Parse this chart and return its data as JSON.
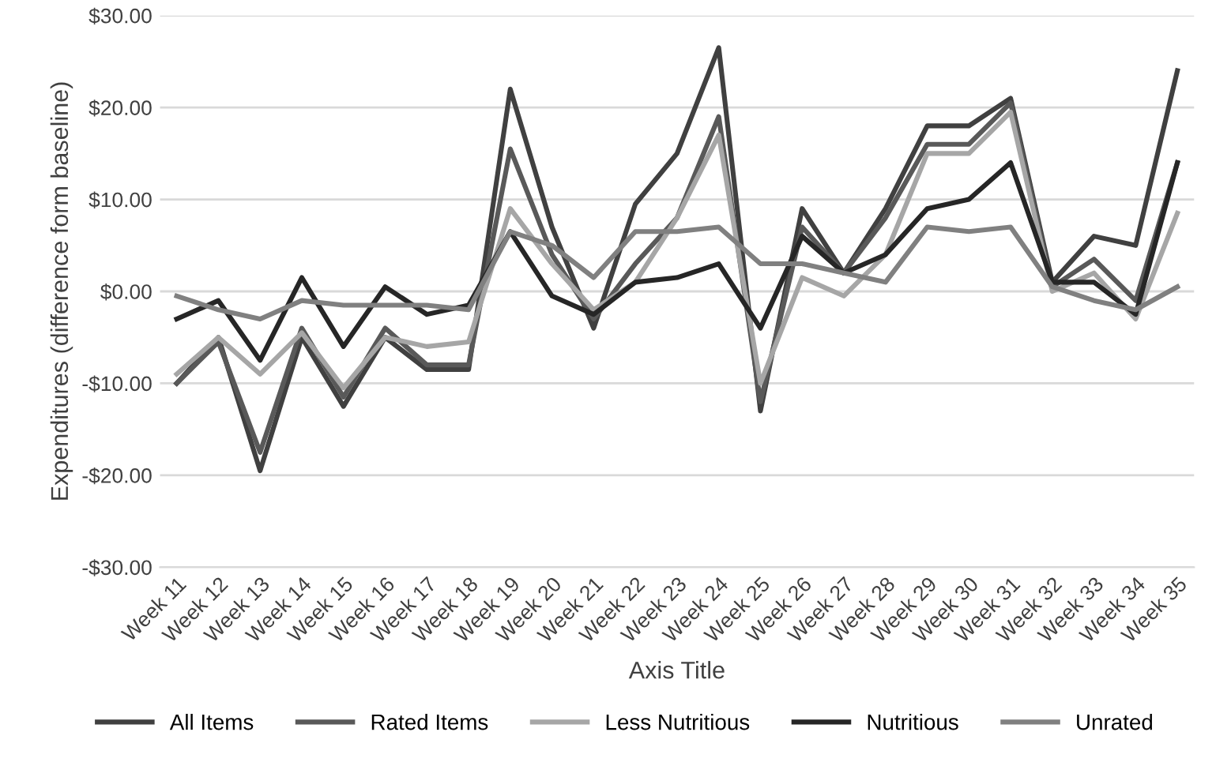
{
  "chart_data": {
    "type": "line",
    "xlabel": "Axis Title",
    "ylabel": "Expenditures (difference form baseline)",
    "categories": [
      "Week 11",
      "Week 12",
      "Week 13",
      "Week 14",
      "Week 15",
      "Week 16",
      "Week 17",
      "Week 18",
      "Week 19",
      "Week 20",
      "Week 21",
      "Week 22",
      "Week 23",
      "Week 24",
      "Week 25",
      "Week 26",
      "Week 27",
      "Week 28",
      "Week 29",
      "Week 30",
      "Week 31",
      "Week 32",
      "Week 33",
      "Week 34",
      "Week 35"
    ],
    "series": [
      {
        "name": "All Items",
        "color": "#404040",
        "values": [
          -10,
          -5,
          -19.5,
          -5,
          -12.5,
          -5,
          -8.5,
          -8.5,
          22,
          7,
          -4,
          9.5,
          15,
          26.5,
          -13,
          9,
          2,
          9,
          18,
          18,
          21,
          1,
          6,
          5,
          24
        ]
      },
      {
        "name": "Rated Items",
        "color": "#595959",
        "values": [
          -10,
          -5.5,
          -17.5,
          -4,
          -11.5,
          -4,
          -8,
          -8,
          15.5,
          4,
          -3,
          3,
          8,
          19,
          -12,
          7,
          2,
          8,
          16,
          16,
          20.5,
          0.5,
          3.5,
          -1,
          14
        ]
      },
      {
        "name": "Less Nutritious",
        "color": "#a6a6a6",
        "values": [
          -9,
          -5,
          -9,
          -4.5,
          -10.5,
          -5,
          -6,
          -5.5,
          9,
          3,
          -2,
          1,
          8,
          17,
          -10,
          1.5,
          -0.5,
          4,
          15,
          15,
          19.5,
          0,
          2,
          -3,
          8.5
        ]
      },
      {
        "name": "Nutritious",
        "color": "#262626",
        "values": [
          -3,
          -1,
          -7.5,
          1.5,
          -6,
          0.5,
          -2.5,
          -1.5,
          6.5,
          -0.5,
          -2.5,
          1,
          1.5,
          3,
          -4,
          6,
          2,
          4,
          9,
          10,
          14,
          1,
          1,
          -2.5,
          14
        ]
      },
      {
        "name": "Unrated",
        "color": "#808080",
        "values": [
          -0.5,
          -2,
          -3,
          -1,
          -1.5,
          -1.5,
          -1.5,
          -2,
          6.5,
          5,
          1.5,
          6.5,
          6.5,
          7,
          3,
          3,
          2,
          1,
          7,
          6.5,
          7,
          0.5,
          -1,
          -2,
          0.5
        ]
      }
    ],
    "ylim": [
      -30,
      30
    ],
    "yticks": [
      {
        "value": -30,
        "label": "-$30.00"
      },
      {
        "value": -20,
        "label": "-$20.00"
      },
      {
        "value": -10,
        "label": "-$10.00"
      },
      {
        "value": 0,
        "label": "$0.00"
      },
      {
        "value": 10,
        "label": "$10.00"
      },
      {
        "value": 20,
        "label": "$20.00"
      },
      {
        "value": 30,
        "label": "$30.00"
      }
    ],
    "grid": "y",
    "legend": "bottom",
    "line_style": "solid",
    "marker": "none"
  }
}
